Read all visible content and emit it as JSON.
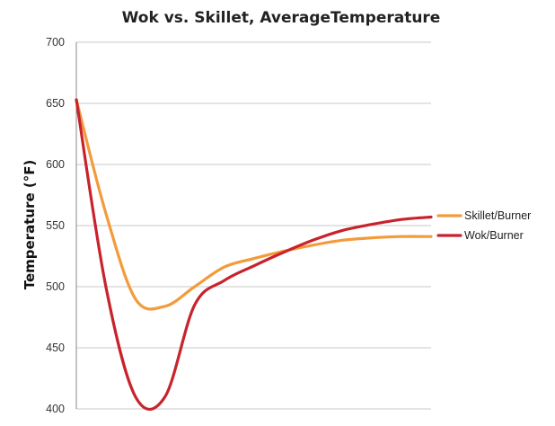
{
  "chart_data": {
    "type": "line",
    "title": "Wok vs. Skillet, AverageTemperature",
    "xlabel": "",
    "ylabel": "Temperature (°F)",
    "ylim": [
      400,
      700
    ],
    "yticks": [
      700,
      650,
      600,
      550,
      500,
      450,
      400
    ],
    "grid": true,
    "legend_position": "right",
    "series": [
      {
        "name": "Skillet/Burner",
        "color": "#f39b3b",
        "values": [
          653,
          560,
          490,
          484,
          500,
          516,
          523,
          529,
          534,
          538,
          540,
          541,
          541
        ]
      },
      {
        "name": "Wok/Burner",
        "color": "#c8232c",
        "values": [
          653,
          500,
          410,
          410,
          485,
          505,
          517,
          528,
          538,
          546,
          551,
          555,
          557
        ]
      }
    ]
  }
}
